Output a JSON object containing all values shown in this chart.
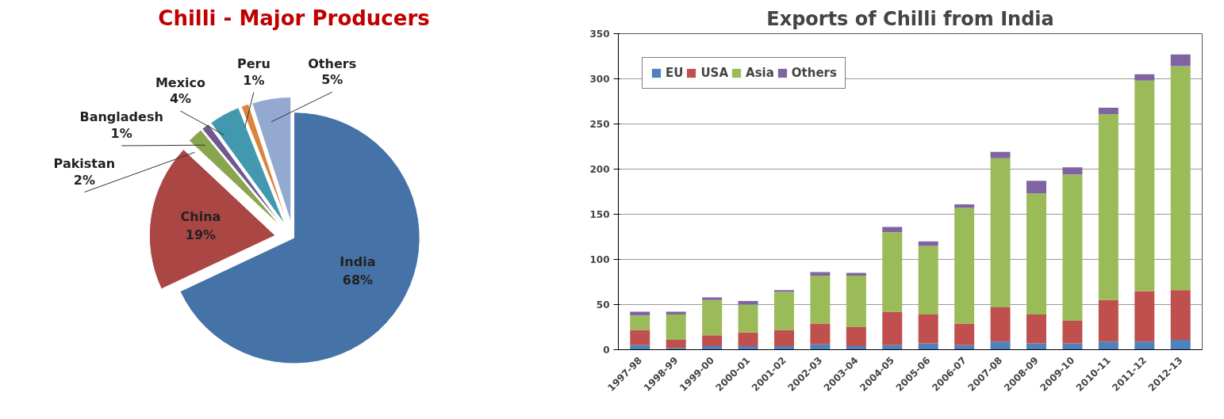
{
  "chart_data": [
    {
      "type": "pie",
      "title": "Chilli - Major Producers",
      "categories": [
        "India",
        "China",
        "Pakistan",
        "Bangladesh",
        "Mexico",
        "Peru",
        "Others"
      ],
      "values": [
        68,
        19,
        2,
        1,
        4,
        1,
        5
      ],
      "colors": [
        "#4572a7",
        "#aa4643",
        "#89a54e",
        "#71588f",
        "#4198af",
        "#db843d",
        "#93a9cf"
      ],
      "value_labels": [
        "68%",
        "19%",
        "2%",
        "1%",
        "4%",
        "1%",
        "5%"
      ]
    },
    {
      "type": "bar",
      "title": "Exports of Chilli from India",
      "stacked": true,
      "categories": [
        "1997-98",
        "1998-99",
        "1999-00",
        "2000-01",
        "2001-02",
        "2002-03",
        "2003-04",
        "2004-05",
        "2005-06",
        "2006-07",
        "2007-08",
        "2008-09",
        "2009-10",
        "2010-11",
        "2011-12",
        "2012-13"
      ],
      "series": [
        {
          "name": "EU",
          "color": "#4f81bd",
          "values": [
            5,
            2,
            4,
            4,
            4,
            6,
            4,
            5,
            7,
            5,
            9,
            7,
            7,
            9,
            9,
            11
          ]
        },
        {
          "name": "USA",
          "color": "#c0504d",
          "values": [
            17,
            9,
            12,
            15,
            18,
            23,
            21,
            37,
            32,
            24,
            38,
            32,
            25,
            46,
            56,
            55
          ]
        },
        {
          "name": "Asia",
          "color": "#9bbb59",
          "values": [
            16,
            28,
            39,
            31,
            42,
            53,
            57,
            88,
            76,
            128,
            165,
            134,
            162,
            206,
            233,
            248
          ]
        },
        {
          "name": "Others",
          "color": "#8064a2",
          "values": [
            4,
            3,
            3,
            4,
            2,
            4,
            3,
            6,
            5,
            4,
            7,
            14,
            8,
            7,
            7,
            13
          ]
        }
      ],
      "ylim": [
        0,
        350
      ],
      "yticks": [
        0,
        50,
        100,
        150,
        200,
        250,
        300,
        350
      ],
      "grid": "y",
      "legend": "top left"
    }
  ]
}
